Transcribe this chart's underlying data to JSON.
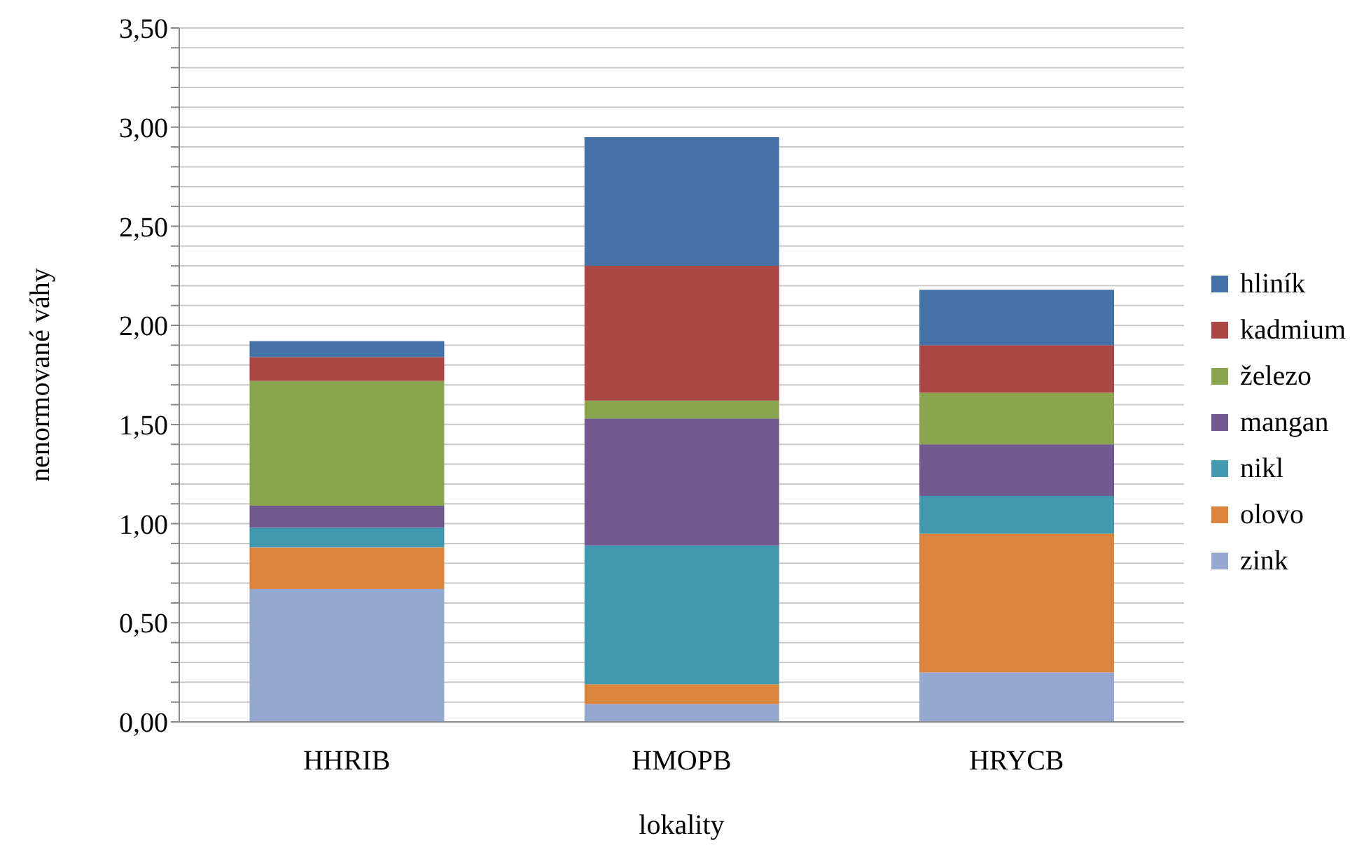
{
  "chart_data": {
    "type": "bar",
    "stacked": true,
    "xlabel": "lokality",
    "ylabel": "nenormované váhy",
    "categories": [
      "HHRIB",
      "HMOPB",
      "HRYCB"
    ],
    "series": [
      {
        "name": "zink",
        "color": "#95a9d0",
        "values": [
          0.67,
          0.09,
          0.25
        ]
      },
      {
        "name": "olovo",
        "color": "#db843d",
        "values": [
          0.21,
          0.1,
          0.7
        ]
      },
      {
        "name": "nikl",
        "color": "#4298af",
        "values": [
          0.1,
          0.7,
          0.19
        ]
      },
      {
        "name": "mangan",
        "color": "#71588f",
        "values": [
          0.11,
          0.64,
          0.26
        ]
      },
      {
        "name": "železo",
        "color": "#89a54e",
        "values": [
          0.63,
          0.09,
          0.26
        ]
      },
      {
        "name": "kadmium",
        "color": "#aa4643",
        "values": [
          0.12,
          0.68,
          0.24
        ]
      },
      {
        "name": "hliník",
        "color": "#4572a7",
        "values": [
          0.08,
          0.65,
          0.28
        ]
      }
    ],
    "ylim": [
      0,
      3.5
    ],
    "yticks": [
      {
        "value": 0,
        "label": "0,00"
      },
      {
        "value": 0.1,
        "label": null
      },
      {
        "value": 0.2,
        "label": null
      },
      {
        "value": 0.3,
        "label": null
      },
      {
        "value": 0.4,
        "label": null
      },
      {
        "value": 0.5,
        "label": "0,50"
      },
      {
        "value": 0.6,
        "label": null
      },
      {
        "value": 0.7,
        "label": null
      },
      {
        "value": 0.8,
        "label": null
      },
      {
        "value": 0.9,
        "label": null
      },
      {
        "value": 1,
        "label": "1,00"
      },
      {
        "value": 1.1,
        "label": null
      },
      {
        "value": 1.2,
        "label": null
      },
      {
        "value": 1.3,
        "label": null
      },
      {
        "value": 1.4,
        "label": null
      },
      {
        "value": 1.5,
        "label": "1,50"
      },
      {
        "value": 1.6,
        "label": null
      },
      {
        "value": 1.7,
        "label": null
      },
      {
        "value": 1.8,
        "label": null
      },
      {
        "value": 1.9,
        "label": null
      },
      {
        "value": 2,
        "label": "2,00"
      },
      {
        "value": 2.1,
        "label": null
      },
      {
        "value": 2.2,
        "label": null
      },
      {
        "value": 2.3,
        "label": null
      },
      {
        "value": 2.4,
        "label": null
      },
      {
        "value": 2.5,
        "label": "2,50"
      },
      {
        "value": 2.6,
        "label": null
      },
      {
        "value": 2.7,
        "label": null
      },
      {
        "value": 2.8,
        "label": null
      },
      {
        "value": 2.9,
        "label": null
      },
      {
        "value": 3,
        "label": "3,00"
      },
      {
        "value": 3.1,
        "label": null
      },
      {
        "value": 3.2,
        "label": null
      },
      {
        "value": 3.3,
        "label": null
      },
      {
        "value": 3.4,
        "label": null
      },
      {
        "value": 3.5,
        "label": "3,50"
      }
    ],
    "grid": "y",
    "legend": "right"
  }
}
